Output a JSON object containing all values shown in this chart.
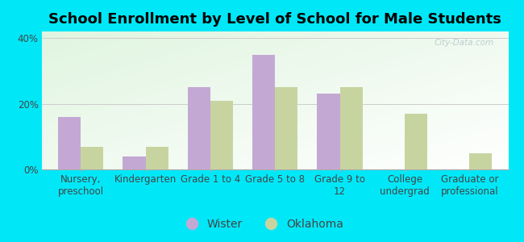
{
  "title": "School Enrollment by Level of School for Male Students",
  "categories": [
    "Nursery,\npreschool",
    "Kindergarten",
    "Grade 1 to 4",
    "Grade 5 to 8",
    "Grade 9 to\n12",
    "College\nundergrad",
    "Graduate or\nprofessional"
  ],
  "wister_values": [
    16,
    4,
    25,
    35,
    23,
    0,
    0
  ],
  "oklahoma_values": [
    7,
    7,
    21,
    25,
    25,
    17,
    5
  ],
  "wister_color": "#c4a8d4",
  "oklahoma_color": "#c8d4a0",
  "background_outer": "#00e8f8",
  "ylim": [
    0,
    42
  ],
  "yticks": [
    0,
    20,
    40
  ],
  "ytick_labels": [
    "0%",
    "20%",
    "40%"
  ],
  "bar_width": 0.35,
  "legend_labels": [
    "Wister",
    "Oklahoma"
  ],
  "title_fontsize": 13,
  "tick_fontsize": 8.5,
  "legend_fontsize": 10,
  "grid_color": "#cccccc",
  "watermark": "City-Data.com"
}
